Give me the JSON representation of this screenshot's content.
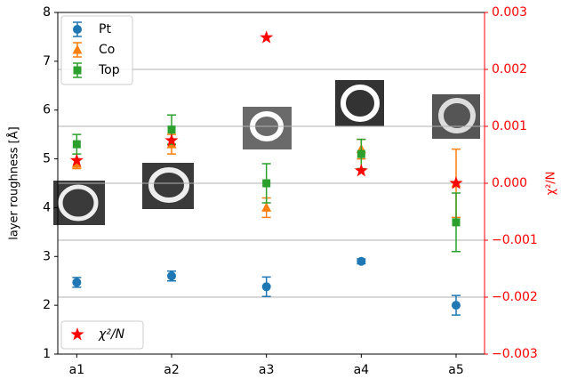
{
  "chart_data": {
    "type": "errorbar",
    "y_label": "layer roughness [Å]",
    "y2_label": "χ²/N",
    "y2_color": "red",
    "categories": [
      "a1",
      "a2",
      "a3",
      "a4",
      "a5"
    ],
    "ylim": [
      1,
      8
    ],
    "yticks": [
      1,
      2,
      3,
      4,
      5,
      6,
      7,
      8
    ],
    "y2lim": [
      -0.003,
      0.003
    ],
    "y2ticks": [
      {
        "value": -0.003,
        "label": "−0.003"
      },
      {
        "value": -0.002,
        "label": "−0.002"
      },
      {
        "value": -0.001,
        "label": "−0.001"
      },
      {
        "value": 0,
        "label": "0.000"
      },
      0.001,
      0.002,
      0.003
    ],
    "grid": "y2",
    "series": [
      {
        "name": "Pt",
        "color": "#1f77b4",
        "marker": "circle",
        "legend": "upper left",
        "values": [
          2.47,
          2.6,
          2.38,
          2.9,
          2.0
        ],
        "errors": [
          0.1,
          0.1,
          0.2,
          0.05,
          0.2
        ]
      },
      {
        "name": "Co",
        "color": "#ff7f0e",
        "marker": "triangle",
        "legend": "upper left",
        "values": [
          4.9,
          5.3,
          4.0,
          5.2,
          4.5
        ],
        "errors": [
          0.1,
          0.2,
          0.2,
          0.2,
          0.7
        ]
      },
      {
        "name": "Top",
        "color": "#2ca02c",
        "marker": "square",
        "legend": "upper left",
        "values": [
          5.3,
          5.6,
          4.5,
          5.1,
          3.7
        ],
        "errors": [
          0.2,
          0.3,
          0.4,
          0.3,
          0.6
        ]
      },
      {
        "name": "χ²/N",
        "color": "red",
        "marker": "star",
        "legend": "lower left",
        "axis": "y2",
        "values": [
          0.0004,
          0.00075,
          0.00256,
          0.00022,
          0.0
        ]
      }
    ]
  }
}
